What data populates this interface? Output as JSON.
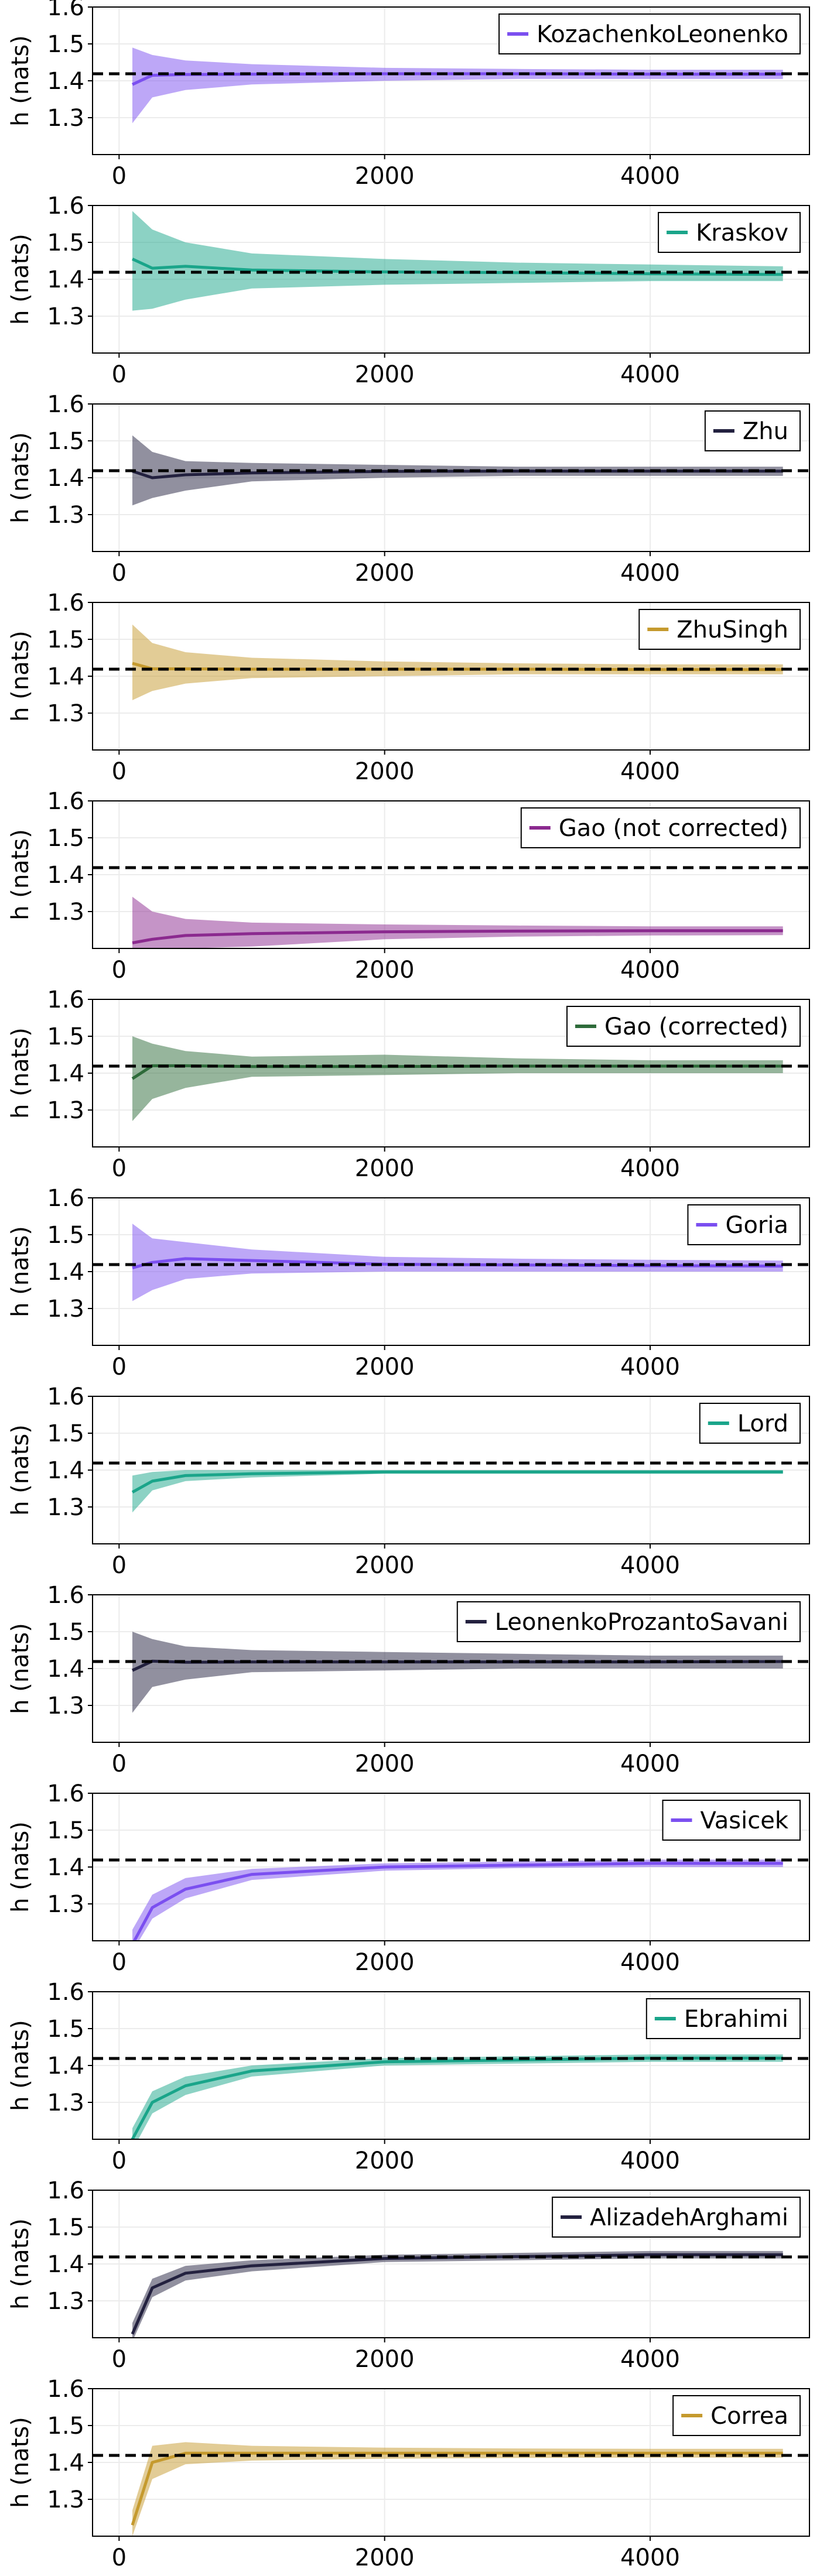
{
  "chart_data": [
    {
      "type": "line",
      "title": "",
      "xlabel": "",
      "ylabel": "h (nats)",
      "xlim": [
        -200,
        5200
      ],
      "ylim": [
        1.2,
        1.6
      ],
      "xticks": [
        0,
        2000,
        4000
      ],
      "yticks": [
        1.3,
        1.4,
        1.5,
        1.6
      ],
      "grid": true,
      "legend_position": "top-right",
      "reference_y": 1.419,
      "series": [
        {
          "name": "KozachenkoLeonenko",
          "color": "#7b4ff0",
          "band_opacity": 0.5,
          "x": [
            100,
            250,
            500,
            1000,
            2000,
            3000,
            4000,
            5000
          ],
          "mean": [
            1.39,
            1.415,
            1.417,
            1.418,
            1.419,
            1.419,
            1.418,
            1.418
          ],
          "lower": [
            1.285,
            1.355,
            1.375,
            1.39,
            1.4,
            1.405,
            1.405,
            1.405
          ],
          "upper": [
            1.49,
            1.47,
            1.455,
            1.445,
            1.435,
            1.432,
            1.43,
            1.43
          ]
        }
      ]
    },
    {
      "type": "line",
      "title": "",
      "xlabel": "",
      "ylabel": "h (nats)",
      "xlim": [
        -200,
        5200
      ],
      "ylim": [
        1.2,
        1.6
      ],
      "xticks": [
        0,
        2000,
        4000
      ],
      "yticks": [
        1.3,
        1.4,
        1.5,
        1.6
      ],
      "grid": true,
      "legend_position": "top-right",
      "reference_y": 1.419,
      "series": [
        {
          "name": "Kraskov",
          "color": "#1aa58a",
          "band_opacity": 0.5,
          "x": [
            100,
            250,
            500,
            1000,
            2000,
            3000,
            4000,
            5000
          ],
          "mean": [
            1.455,
            1.43,
            1.435,
            1.425,
            1.42,
            1.418,
            1.415,
            1.413
          ],
          "lower": [
            1.315,
            1.32,
            1.345,
            1.375,
            1.385,
            1.39,
            1.395,
            1.395
          ],
          "upper": [
            1.585,
            1.535,
            1.5,
            1.47,
            1.455,
            1.445,
            1.44,
            1.435
          ]
        }
      ]
    },
    {
      "type": "line",
      "title": "",
      "xlabel": "",
      "ylabel": "h (nats)",
      "xlim": [
        -200,
        5200
      ],
      "ylim": [
        1.2,
        1.6
      ],
      "xticks": [
        0,
        2000,
        4000
      ],
      "yticks": [
        1.3,
        1.4,
        1.5,
        1.6
      ],
      "grid": true,
      "legend_position": "top-right",
      "reference_y": 1.419,
      "series": [
        {
          "name": "Zhu",
          "color": "#23213f",
          "band_opacity": 0.5,
          "x": [
            100,
            250,
            500,
            1000,
            2000,
            3000,
            4000,
            5000
          ],
          "mean": [
            1.418,
            1.4,
            1.408,
            1.413,
            1.417,
            1.418,
            1.418,
            1.418
          ],
          "lower": [
            1.325,
            1.345,
            1.365,
            1.39,
            1.4,
            1.405,
            1.405,
            1.405
          ],
          "upper": [
            1.515,
            1.47,
            1.445,
            1.44,
            1.435,
            1.43,
            1.43,
            1.43
          ]
        }
      ]
    },
    {
      "type": "line",
      "title": "",
      "xlabel": "",
      "ylabel": "h (nats)",
      "xlim": [
        -200,
        5200
      ],
      "ylim": [
        1.2,
        1.6
      ],
      "xticks": [
        0,
        2000,
        4000
      ],
      "yticks": [
        1.3,
        1.4,
        1.5,
        1.6
      ],
      "grid": true,
      "legend_position": "top-right",
      "reference_y": 1.419,
      "series": [
        {
          "name": "ZhuSingh",
          "color": "#c59a2e",
          "band_opacity": 0.5,
          "x": [
            100,
            250,
            500,
            1000,
            2000,
            3000,
            4000,
            5000
          ],
          "mean": [
            1.435,
            1.42,
            1.42,
            1.419,
            1.419,
            1.419,
            1.418,
            1.418
          ],
          "lower": [
            1.335,
            1.36,
            1.38,
            1.395,
            1.4,
            1.405,
            1.405,
            1.405
          ],
          "upper": [
            1.54,
            1.49,
            1.465,
            1.45,
            1.44,
            1.435,
            1.432,
            1.432
          ]
        }
      ]
    },
    {
      "type": "line",
      "title": "",
      "xlabel": "",
      "ylabel": "h (nats)",
      "xlim": [
        -200,
        5200
      ],
      "ylim": [
        1.2,
        1.6
      ],
      "xticks": [
        0,
        2000,
        4000
      ],
      "yticks": [
        1.3,
        1.4,
        1.5,
        1.6
      ],
      "grid": true,
      "legend_position": "top-right",
      "reference_y": 1.419,
      "series": [
        {
          "name": "Gao (not corrected)",
          "color": "#8b2a8f",
          "band_opacity": 0.5,
          "x": [
            100,
            250,
            500,
            1000,
            2000,
            3000,
            4000,
            5000
          ],
          "mean": [
            1.215,
            1.225,
            1.235,
            1.24,
            1.245,
            1.247,
            1.248,
            1.248
          ],
          "lower": [
            1.2,
            1.2,
            1.2,
            1.205,
            1.225,
            1.232,
            1.235,
            1.236
          ],
          "upper": [
            1.34,
            1.3,
            1.28,
            1.27,
            1.265,
            1.262,
            1.26,
            1.26
          ]
        }
      ]
    },
    {
      "type": "line",
      "title": "",
      "xlabel": "",
      "ylabel": "h (nats)",
      "xlim": [
        -200,
        5200
      ],
      "ylim": [
        1.2,
        1.6
      ],
      "xticks": [
        0,
        2000,
        4000
      ],
      "yticks": [
        1.3,
        1.4,
        1.5,
        1.6
      ],
      "grid": true,
      "legend_position": "top-right",
      "reference_y": 1.419,
      "series": [
        {
          "name": "Gao (corrected)",
          "color": "#2e6b3a",
          "band_opacity": 0.5,
          "x": [
            100,
            250,
            500,
            1000,
            2000,
            3000,
            4000,
            5000
          ],
          "mean": [
            1.385,
            1.42,
            1.42,
            1.418,
            1.418,
            1.419,
            1.419,
            1.419
          ],
          "lower": [
            1.27,
            1.33,
            1.36,
            1.39,
            1.395,
            1.4,
            1.4,
            1.4
          ],
          "upper": [
            1.5,
            1.48,
            1.46,
            1.445,
            1.45,
            1.44,
            1.435,
            1.435
          ]
        }
      ]
    },
    {
      "type": "line",
      "title": "",
      "xlabel": "",
      "ylabel": "h (nats)",
      "xlim": [
        -200,
        5200
      ],
      "ylim": [
        1.2,
        1.6
      ],
      "xticks": [
        0,
        2000,
        4000
      ],
      "yticks": [
        1.3,
        1.4,
        1.5,
        1.6
      ],
      "grid": true,
      "legend_position": "top-right",
      "reference_y": 1.419,
      "series": [
        {
          "name": "Goria",
          "color": "#7b4ff0",
          "band_opacity": 0.5,
          "x": [
            100,
            250,
            500,
            1000,
            2000,
            3000,
            4000,
            5000
          ],
          "mean": [
            1.41,
            1.425,
            1.435,
            1.43,
            1.42,
            1.418,
            1.416,
            1.415
          ],
          "lower": [
            1.32,
            1.35,
            1.38,
            1.395,
            1.4,
            1.4,
            1.4,
            1.4
          ],
          "upper": [
            1.53,
            1.49,
            1.48,
            1.46,
            1.44,
            1.435,
            1.432,
            1.43
          ]
        }
      ]
    },
    {
      "type": "line",
      "title": "",
      "xlabel": "",
      "ylabel": "h (nats)",
      "xlim": [
        -200,
        5200
      ],
      "ylim": [
        1.2,
        1.6
      ],
      "xticks": [
        0,
        2000,
        4000
      ],
      "yticks": [
        1.3,
        1.4,
        1.5,
        1.6
      ],
      "grid": true,
      "legend_position": "top-right",
      "reference_y": 1.419,
      "series": [
        {
          "name": "Lord",
          "color": "#1aa58a",
          "band_opacity": 0.5,
          "x": [
            100,
            250,
            500,
            1000,
            2000,
            3000,
            4000,
            5000
          ],
          "mean": [
            1.34,
            1.37,
            1.385,
            1.39,
            1.395,
            1.395,
            1.395,
            1.395
          ],
          "lower": [
            1.285,
            1.345,
            1.37,
            1.38,
            1.39,
            1.39,
            1.39,
            1.39
          ],
          "upper": [
            1.385,
            1.395,
            1.4,
            1.4,
            1.4,
            1.4,
            1.4,
            1.4
          ]
        }
      ]
    },
    {
      "type": "line",
      "title": "",
      "xlabel": "",
      "ylabel": "h (nats)",
      "xlim": [
        -200,
        5200
      ],
      "ylim": [
        1.2,
        1.6
      ],
      "xticks": [
        0,
        2000,
        4000
      ],
      "yticks": [
        1.3,
        1.4,
        1.5,
        1.6
      ],
      "grid": true,
      "legend_position": "top-right",
      "reference_y": 1.419,
      "series": [
        {
          "name": "LeonenkoProzantoSavani",
          "color": "#23213f",
          "band_opacity": 0.5,
          "x": [
            100,
            250,
            500,
            1000,
            2000,
            3000,
            4000,
            5000
          ],
          "mean": [
            1.395,
            1.42,
            1.417,
            1.418,
            1.418,
            1.418,
            1.418,
            1.419
          ],
          "lower": [
            1.28,
            1.35,
            1.37,
            1.39,
            1.395,
            1.4,
            1.4,
            1.4
          ],
          "upper": [
            1.5,
            1.48,
            1.46,
            1.45,
            1.445,
            1.44,
            1.435,
            1.435
          ]
        }
      ]
    },
    {
      "type": "line",
      "title": "",
      "xlabel": "",
      "ylabel": "h (nats)",
      "xlim": [
        -200,
        5200
      ],
      "ylim": [
        1.2,
        1.6
      ],
      "xticks": [
        0,
        2000,
        4000
      ],
      "yticks": [
        1.3,
        1.4,
        1.5,
        1.6
      ],
      "grid": true,
      "legend_position": "top-right",
      "reference_y": 1.419,
      "series": [
        {
          "name": "Vasicek",
          "color": "#7b4ff0",
          "band_opacity": 0.5,
          "x": [
            100,
            250,
            500,
            1000,
            2000,
            3000,
            4000,
            5000
          ],
          "mean": [
            1.19,
            1.29,
            1.34,
            1.38,
            1.4,
            1.405,
            1.41,
            1.41
          ],
          "lower": [
            1.17,
            1.26,
            1.315,
            1.365,
            1.39,
            1.397,
            1.4,
            1.4
          ],
          "upper": [
            1.23,
            1.325,
            1.37,
            1.395,
            1.41,
            1.415,
            1.42,
            1.42
          ]
        }
      ]
    },
    {
      "type": "line",
      "title": "",
      "xlabel": "",
      "ylabel": "h (nats)",
      "xlim": [
        -200,
        5200
      ],
      "ylim": [
        1.2,
        1.6
      ],
      "xticks": [
        0,
        2000,
        4000
      ],
      "yticks": [
        1.3,
        1.4,
        1.5,
        1.6
      ],
      "grid": true,
      "legend_position": "top-right",
      "reference_y": 1.419,
      "series": [
        {
          "name": "Ebrahimi",
          "color": "#1aa58a",
          "band_opacity": 0.5,
          "x": [
            100,
            250,
            500,
            1000,
            2000,
            3000,
            4000,
            5000
          ],
          "mean": [
            1.2,
            1.3,
            1.345,
            1.385,
            1.41,
            1.415,
            1.42,
            1.42
          ],
          "lower": [
            1.17,
            1.27,
            1.32,
            1.37,
            1.4,
            1.405,
            1.41,
            1.41
          ],
          "upper": [
            1.23,
            1.33,
            1.37,
            1.4,
            1.42,
            1.425,
            1.43,
            1.43
          ]
        }
      ]
    },
    {
      "type": "line",
      "title": "",
      "xlabel": "",
      "ylabel": "h (nats)",
      "xlim": [
        -200,
        5200
      ],
      "ylim": [
        1.2,
        1.6
      ],
      "xticks": [
        0,
        2000,
        4000
      ],
      "yticks": [
        1.3,
        1.4,
        1.5,
        1.6
      ],
      "grid": true,
      "legend_position": "top-right",
      "reference_y": 1.419,
      "series": [
        {
          "name": "AlizadehArghami",
          "color": "#23213f",
          "band_opacity": 0.5,
          "x": [
            100,
            250,
            500,
            1000,
            2000,
            3000,
            4000,
            5000
          ],
          "mean": [
            1.21,
            1.335,
            1.375,
            1.395,
            1.415,
            1.42,
            1.425,
            1.425
          ],
          "lower": [
            1.19,
            1.31,
            1.355,
            1.38,
            1.405,
            1.41,
            1.415,
            1.415
          ],
          "upper": [
            1.24,
            1.36,
            1.395,
            1.41,
            1.425,
            1.43,
            1.435,
            1.435
          ]
        }
      ]
    },
    {
      "type": "line",
      "title": "",
      "xlabel": "",
      "ylabel": "h (nats)",
      "xlim": [
        -200,
        5200
      ],
      "ylim": [
        1.2,
        1.6
      ],
      "xticks": [
        0,
        2000,
        4000
      ],
      "yticks": [
        1.3,
        1.4,
        1.5,
        1.6
      ],
      "grid": true,
      "legend_position": "top-right",
      "reference_y": 1.419,
      "series": [
        {
          "name": "Correa",
          "color": "#c59a2e",
          "band_opacity": 0.5,
          "x": [
            100,
            250,
            500,
            1000,
            2000,
            3000,
            4000,
            5000
          ],
          "mean": [
            1.23,
            1.4,
            1.425,
            1.425,
            1.425,
            1.425,
            1.425,
            1.425
          ],
          "lower": [
            1.2,
            1.355,
            1.395,
            1.405,
            1.41,
            1.412,
            1.413,
            1.413
          ],
          "upper": [
            1.27,
            1.445,
            1.455,
            1.445,
            1.44,
            1.438,
            1.437,
            1.437
          ]
        }
      ]
    }
  ]
}
